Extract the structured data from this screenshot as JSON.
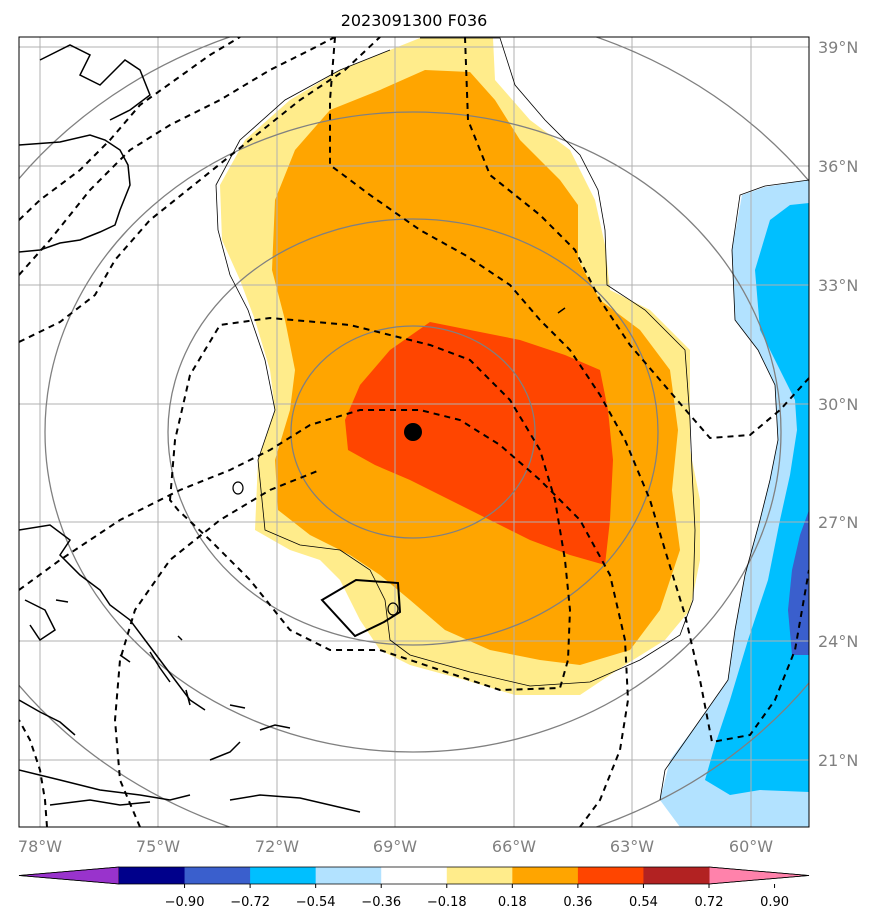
{
  "title": "2023091300 F036",
  "map": {
    "lon_range": [
      -78.5,
      -58.5
    ],
    "lat_range": [
      19.5,
      39.5
    ],
    "lon_ticks": [
      "78°W",
      "75°W",
      "72°W",
      "69°W",
      "66°W",
      "63°W",
      "60°W"
    ],
    "lat_ticks": [
      "39°N",
      "36°N",
      "33°N",
      "30°N",
      "27°N",
      "24°N",
      "21°N"
    ],
    "storm_center": {
      "lon": -68.5,
      "lat": 29.2
    },
    "gridlines": true
  },
  "colorbar": {
    "ticks": [
      "−0.90",
      "−0.72",
      "−0.54",
      "−0.36",
      "−0.18",
      "0.18",
      "0.36",
      "0.54",
      "0.72",
      "0.90"
    ],
    "colors": [
      "#9933cc",
      "#00008b",
      "#3a5fcd",
      "#00bfff",
      "#b2e2ff",
      "#ffffff",
      "#ffec8b",
      "#ffa500",
      "#ff4500",
      "#b22222",
      "#ff82ab"
    ]
  },
  "colors": {
    "shade_036": "#ffec8b",
    "shade_054": "#ffa500",
    "shade_072": "#ff4500",
    "neg_018": "#b2e2ff",
    "neg_036": "#00bfff",
    "neg_054": "#3a5fcd",
    "range_rings": "#808080"
  }
}
